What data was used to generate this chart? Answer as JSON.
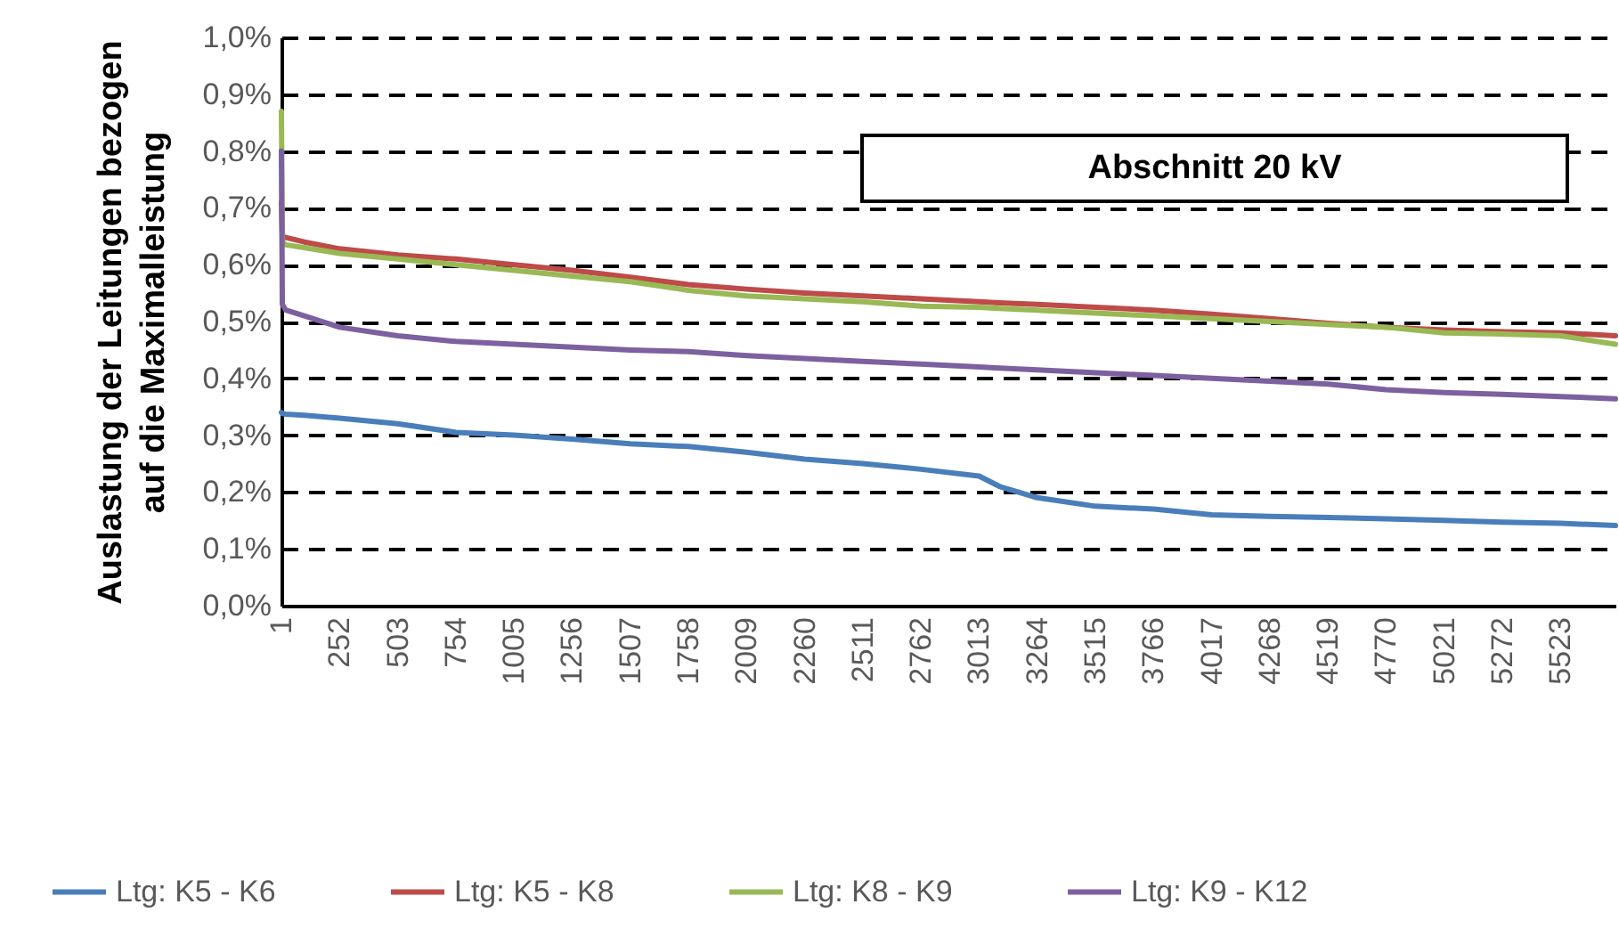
{
  "chart_data": {
    "type": "line",
    "ylabel": "Auslastung der Leitungen bezogen auf die Maximalleistung",
    "annotations": [
      "Abschnitt 20 kV"
    ],
    "x": [
      1,
      5,
      20,
      100,
      252,
      503,
      754,
      1005,
      1256,
      1507,
      1758,
      2009,
      2260,
      2511,
      2762,
      3013,
      3100,
      3264,
      3515,
      3766,
      4017,
      4268,
      4519,
      4770,
      5021,
      5272,
      5523,
      5760
    ],
    "series": [
      {
        "name": "Ltg: K5 - K6",
        "color": "#4a7ebb",
        "values": [
          0.34,
          0.338,
          0.337,
          0.335,
          0.33,
          0.32,
          0.305,
          0.3,
          0.293,
          0.285,
          0.28,
          0.27,
          0.258,
          0.25,
          0.24,
          0.228,
          0.21,
          0.19,
          0.175,
          0.17,
          0.16,
          0.157,
          0.155,
          0.153,
          0.15,
          0.147,
          0.145,
          0.141
        ]
      },
      {
        "name": "Ltg: K5 - K8",
        "color": "#be4b48",
        "values": [
          0.71,
          0.65,
          0.648,
          0.64,
          0.628,
          0.617,
          0.61,
          0.6,
          0.59,
          0.578,
          0.565,
          0.557,
          0.55,
          0.545,
          0.54,
          0.535,
          0.533,
          0.53,
          0.525,
          0.52,
          0.513,
          0.505,
          0.497,
          0.49,
          0.485,
          0.482,
          0.48,
          0.475
        ]
      },
      {
        "name": "Ltg: K8 - K9",
        "color": "#98b954",
        "values": [
          0.87,
          0.64,
          0.635,
          0.63,
          0.62,
          0.61,
          0.6,
          0.59,
          0.58,
          0.57,
          0.555,
          0.545,
          0.54,
          0.535,
          0.527,
          0.525,
          0.523,
          0.52,
          0.515,
          0.51,
          0.505,
          0.5,
          0.495,
          0.49,
          0.48,
          0.478,
          0.475,
          0.46
        ]
      },
      {
        "name": "Ltg: K9 - K12",
        "color": "#7d60a0",
        "values": [
          0.8,
          0.53,
          0.52,
          0.51,
          0.49,
          0.475,
          0.465,
          0.46,
          0.455,
          0.45,
          0.447,
          0.44,
          0.435,
          0.43,
          0.425,
          0.42,
          0.418,
          0.415,
          0.41,
          0.405,
          0.4,
          0.395,
          0.39,
          0.38,
          0.375,
          0.372,
          0.368,
          0.364
        ]
      }
    ],
    "xlim": [
      1,
      5760
    ],
    "xticks": [
      1,
      252,
      503,
      754,
      1005,
      1256,
      1507,
      1758,
      2009,
      2260,
      2511,
      2762,
      3013,
      3264,
      3515,
      3766,
      4017,
      4268,
      4519,
      4770,
      5021,
      5272,
      5523
    ],
    "ylim": [
      0,
      1
    ],
    "yticks": [
      {
        "value": 0,
        "label": "0,0%"
      },
      {
        "value": 0.1,
        "label": "0,1%"
      },
      {
        "value": 0.2,
        "label": "0,2%"
      },
      {
        "value": 0.3,
        "label": "0,3%"
      },
      {
        "value": 0.4,
        "label": "0,4%"
      },
      {
        "value": 0.5,
        "label": "0,5%"
      },
      {
        "value": 0.6,
        "label": "0,6%"
      },
      {
        "value": 0.7,
        "label": "0,7%"
      },
      {
        "value": 0.8,
        "label": "0,8%"
      },
      {
        "value": 0.9,
        "label": "0,9%"
      },
      {
        "value": 1,
        "label": "1,0%"
      }
    ],
    "grid": "y",
    "legend": "bottom",
    "line_style": "solid",
    "marker": "none"
  }
}
